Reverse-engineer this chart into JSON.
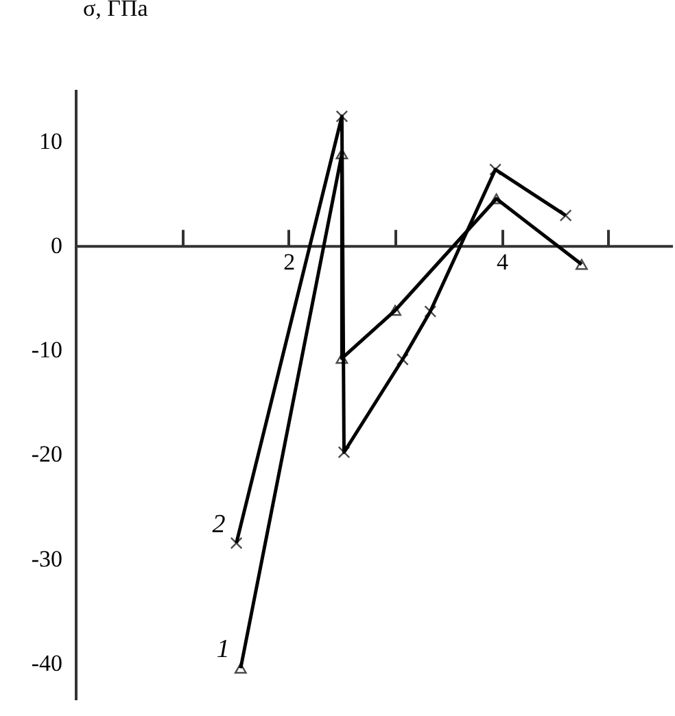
{
  "chart_data": {
    "type": "line",
    "ylabel": "σ, ГПа",
    "xlim": [
      0,
      5.6
    ],
    "ylim": [
      -43.5,
      15
    ],
    "xticks": [
      {
        "value": 1,
        "label": null
      },
      2,
      {
        "value": 3,
        "label": null
      },
      4,
      {
        "value": 5,
        "label": null
      }
    ],
    "yticks": [
      -40,
      -30,
      -20,
      -10,
      0,
      10
    ],
    "grid": false,
    "line_style": "solid",
    "series": [
      {
        "name": "1",
        "color": "#000000",
        "marker": "triangle",
        "x": [
          1.55,
          2.5,
          2.5,
          3.0,
          3.95,
          4.75
        ],
        "values": [
          -40.5,
          8.8,
          -10.8,
          -6.2,
          4.5,
          -1.8
        ]
      },
      {
        "name": "2",
        "color": "#000000",
        "marker": "cross",
        "x": [
          1.51,
          2.5,
          2.52,
          3.07,
          3.33,
          3.94,
          4.6
        ],
        "values": [
          -28.5,
          12.4,
          -19.8,
          -10.9,
          -6.3,
          7.3,
          2.9
        ]
      }
    ]
  }
}
